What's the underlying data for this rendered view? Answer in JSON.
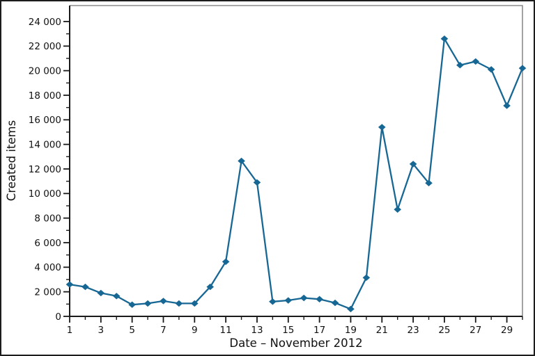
{
  "chart_data": {
    "type": "line",
    "title": "",
    "xlabel": "Date – November 2012",
    "ylabel": "Created items",
    "series_name": "Created items",
    "x": [
      1,
      2,
      3,
      4,
      5,
      6,
      7,
      8,
      9,
      10,
      11,
      12,
      13,
      14,
      15,
      16,
      17,
      18,
      19,
      20,
      21,
      22,
      23,
      24,
      25,
      26,
      27,
      28,
      29,
      30
    ],
    "values": [
      2600,
      2400,
      1900,
      1650,
      950,
      1050,
      1250,
      1050,
      1050,
      2400,
      4450,
      12650,
      10900,
      1200,
      1300,
      1500,
      1400,
      1100,
      600,
      3150,
      15400,
      8700,
      12400,
      10850,
      22600,
      20450,
      20750,
      20100,
      17150,
      20200
    ],
    "xlim": [
      1,
      30
    ],
    "ylim": [
      0,
      25300
    ],
    "ytick_values": [
      0,
      2000,
      4000,
      6000,
      8000,
      10000,
      12000,
      14000,
      16000,
      18000,
      20000,
      22000,
      24000
    ],
    "ytick_labels": [
      "0",
      "2 000",
      "4 000",
      "6 000",
      "8 000",
      "10 000",
      "12 000",
      "14 000",
      "16 000",
      "18 000",
      "20 000",
      "22 000",
      "24 000"
    ],
    "ytick_minor_values": [
      1000,
      3000,
      5000,
      7000,
      9000,
      11000,
      13000,
      15000,
      17000,
      19000,
      21000,
      23000
    ],
    "xtick_major_values": [
      1,
      3,
      5,
      7,
      9,
      11,
      13,
      15,
      17,
      19,
      21,
      23,
      25,
      27,
      29
    ],
    "xtick_major_labels": [
      "1",
      "3",
      "5",
      "7",
      "9",
      "11",
      "13",
      "15",
      "17",
      "19",
      "21",
      "23",
      "25",
      "27",
      "29"
    ],
    "xtick_minor_values": [
      2,
      4,
      6,
      8,
      10,
      12,
      14,
      16,
      18,
      20,
      22,
      24,
      26,
      28,
      30
    ],
    "grid": false,
    "legend": "none",
    "marker": "diamond",
    "line_color": "#176794",
    "marker_color": "#176794",
    "axis_color": "#1a1a1a",
    "frame_color": "#8c8c8c",
    "background_color": "#ffffff"
  }
}
